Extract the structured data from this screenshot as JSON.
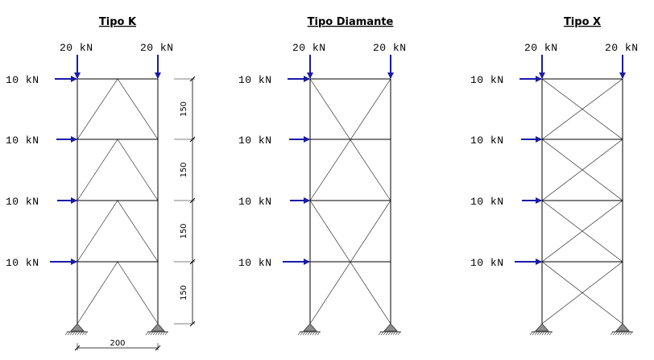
{
  "panels": [
    {
      "key": "k",
      "title": "Tipo K",
      "top_loads": [
        "20 kN",
        "20 kN"
      ],
      "lateral_loads": [
        "10 kN",
        "10 kN",
        "10 kN",
        "10 kN"
      ],
      "show_dimensions": true
    },
    {
      "key": "diamante",
      "title": "Tipo Diamante",
      "top_loads": [
        "20 kN",
        "20 kN"
      ],
      "lateral_loads": [
        "10 kN",
        "10 kN",
        "10 kN",
        "10 kN"
      ],
      "show_dimensions": false
    },
    {
      "key": "x",
      "title": "Tipo X",
      "top_loads": [
        "20 kN",
        "20 kN"
      ],
      "lateral_loads": [
        "10 kN",
        "10 kN",
        "10 kN",
        "10 kN"
      ],
      "show_dimensions": false
    }
  ],
  "dimensions": {
    "story_heights": [
      "150",
      "150",
      "150",
      "150"
    ],
    "bay_width": "200"
  },
  "colors": {
    "load_arrow": "#1a1aa6",
    "support_fill": "#8c8c8c",
    "member": "#000000"
  }
}
